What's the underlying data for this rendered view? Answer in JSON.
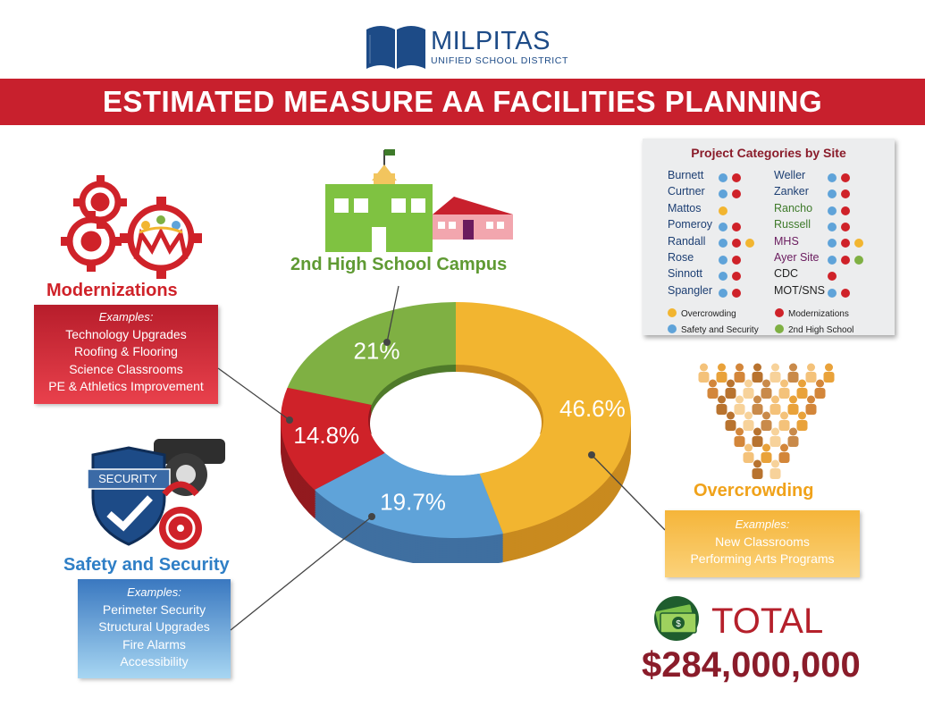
{
  "logo": {
    "name": "MILPITAS",
    "subtitle": "UNIFIED SCHOOL DISTRICT"
  },
  "banner": {
    "title": "ESTIMATED MEASURE AA FACILITIES PLANNING"
  },
  "colors": {
    "overcrowding": "#f2b530",
    "modernizations": "#cf2229",
    "safety": "#5fa3d9",
    "high_school": "#7fb043",
    "brand_blue": "#1d4b87",
    "banner_red": "#c8202d"
  },
  "chart_data": {
    "type": "pie",
    "style": "donut",
    "categories": [
      "Overcrowding",
      "Safety and Security",
      "Modernizations",
      "2nd High School Campus"
    ],
    "values": [
      46.6,
      19.7,
      14.8,
      21
    ],
    "labels": [
      "46.6%",
      "19.7%",
      "14.8%",
      "21%"
    ],
    "colors": [
      "#f2b530",
      "#5fa3d9",
      "#cf2229",
      "#7fb043"
    ],
    "side_colors": [
      "#c98a1f",
      "#3f6fa0",
      "#921a1f",
      "#4f7a2a"
    ]
  },
  "categories": {
    "modernizations": {
      "title": "Modernizations",
      "examples_label": "Examples:",
      "examples": [
        "Technology Upgrades",
        "Roofing & Flooring",
        "Science Classrooms",
        "PE & Athletics Improvement"
      ]
    },
    "safety": {
      "title": "Safety and Security",
      "badge_text": "SECURITY",
      "examples_label": "Examples:",
      "examples": [
        "Perimeter Security",
        "Structural Upgrades",
        "Fire Alarms",
        "Accessibility"
      ]
    },
    "overcrowding": {
      "title": "Overcrowding",
      "examples_label": "Examples:",
      "examples": [
        "New Classrooms",
        "Performing Arts Programs"
      ]
    },
    "high_school": {
      "title": "2nd High School Campus"
    }
  },
  "legend": {
    "title": "Project Categories by Site",
    "left_sites": [
      {
        "name": "Burnett",
        "cats": [
          "safety",
          "modernizations"
        ],
        "color": "#1d3f73"
      },
      {
        "name": "Curtner",
        "cats": [
          "safety",
          "modernizations"
        ],
        "color": "#1d3f73"
      },
      {
        "name": "Mattos",
        "cats": [
          "overcrowding"
        ],
        "color": "#1d3f73"
      },
      {
        "name": "Pomeroy",
        "cats": [
          "safety",
          "modernizations"
        ],
        "color": "#1d3f73"
      },
      {
        "name": "Randall",
        "cats": [
          "safety",
          "modernizations",
          "overcrowding"
        ],
        "color": "#1d3f73"
      },
      {
        "name": "Rose",
        "cats": [
          "safety",
          "modernizations"
        ],
        "color": "#1d3f73"
      },
      {
        "name": "Sinnott",
        "cats": [
          "safety",
          "modernizations"
        ],
        "color": "#1d3f73"
      },
      {
        "name": "Spangler",
        "cats": [
          "safety",
          "modernizations"
        ],
        "color": "#1d3f73"
      }
    ],
    "right_sites": [
      {
        "name": "Weller",
        "cats": [
          "safety",
          "modernizations"
        ],
        "color": "#1d3f73"
      },
      {
        "name": "Zanker",
        "cats": [
          "safety",
          "modernizations"
        ],
        "color": "#1d3f73"
      },
      {
        "name": "Rancho",
        "cats": [
          "safety",
          "modernizations"
        ],
        "color": "#3e7a2a"
      },
      {
        "name": "Russell",
        "cats": [
          "safety",
          "modernizations"
        ],
        "color": "#3e7a2a"
      },
      {
        "name": "MHS",
        "cats": [
          "safety",
          "modernizations",
          "overcrowding"
        ],
        "color": "#6a1b5e"
      },
      {
        "name": "Ayer Site",
        "cats": [
          "safety",
          "modernizations",
          "high_school"
        ],
        "color": "#6a1b5e"
      },
      {
        "name": "CDC",
        "cats": [
          "modernizations"
        ],
        "color": "#222222"
      },
      {
        "name": "MOT/SNS",
        "cats": [
          "safety",
          "modernizations"
        ],
        "color": "#222222"
      }
    ],
    "keys": [
      {
        "cat": "overcrowding",
        "label": "Overcrowding"
      },
      {
        "cat": "modernizations",
        "label": "Modernizations"
      },
      {
        "cat": "safety",
        "label": "Safety and Security"
      },
      {
        "cat": "high_school",
        "label": "2nd High School"
      }
    ]
  },
  "total": {
    "label": "TOTAL",
    "value": "$284,000,000"
  }
}
